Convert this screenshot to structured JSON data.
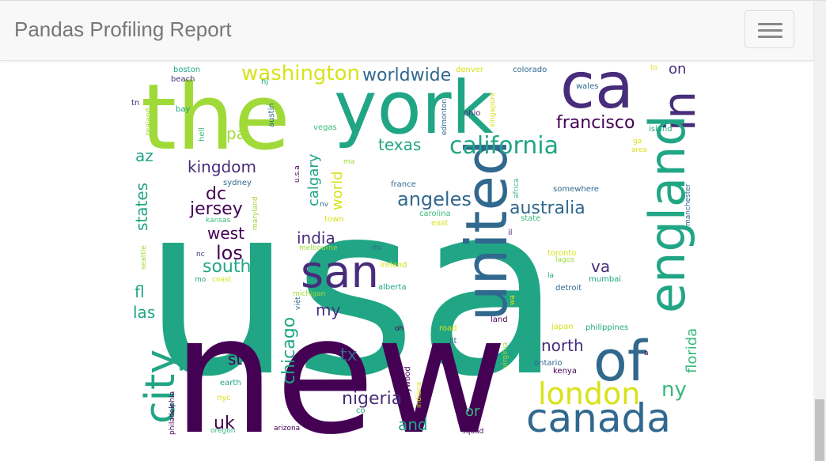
{
  "navbar": {
    "brand": "Pandas Profiling Report",
    "menu_icon": "hamburger-icon"
  },
  "wordcloud": {
    "words": [
      "usa",
      "new",
      "the",
      "york",
      "ca",
      "united",
      "san",
      "in",
      "england",
      "city",
      "canada",
      "of",
      "london",
      "california",
      "washington",
      "worldwide",
      "francisco",
      "texas",
      "angeles",
      "australia",
      "kingdom",
      "jersey",
      "dc",
      "west",
      "los",
      "south",
      "india",
      "pa",
      "az",
      "states",
      "fl",
      "las",
      "chicago",
      "nigeria",
      "uk",
      "and",
      "or",
      "ny",
      "north",
      "tx",
      "st",
      "va",
      "my",
      "florida",
      "calgary",
      "world",
      "on",
      "boston",
      "beach",
      "nj",
      "bay",
      "austin",
      "hell",
      "zealand",
      "tn",
      "vegas",
      "edmonton",
      "ohio",
      "singapore",
      "denver",
      "colorado",
      "to",
      "wales",
      "island",
      "ga",
      "area",
      "manchester",
      "sydney",
      "u.s.a",
      "ma",
      "nv",
      "france",
      "africa",
      "somewhere",
      "kansas",
      "maryland",
      "town",
      "carolina",
      "east",
      "state",
      "il",
      "nc",
      "mi",
      "melbourne",
      "mo",
      "coast",
      "ireland",
      "alberta",
      "michigan",
      "lagos",
      "toronto",
      "la",
      "mumbai",
      "detroit",
      "seattle",
      "wa",
      "land",
      "oh",
      "road",
      "lit",
      "virginia",
      "hollywood",
      "japan",
      "philippines",
      "ontario",
      "kenya",
      "your",
      "earth",
      "nyc",
      "philadelphia",
      "oregon",
      "arizona",
      "co",
      "indiana",
      "squad",
      "việt",
      "a"
    ]
  },
  "colors": {
    "navbar_bg": "#f8f8f8",
    "brand_text": "#777777",
    "wc_teal": "#21a685",
    "wc_purple": "#440154",
    "wc_lime": "#a0da39",
    "wc_yellow": "#d8e219",
    "wc_blue": "#31688e",
    "wc_green": "#3ab97c",
    "wc_indigo": "#472d7b"
  }
}
